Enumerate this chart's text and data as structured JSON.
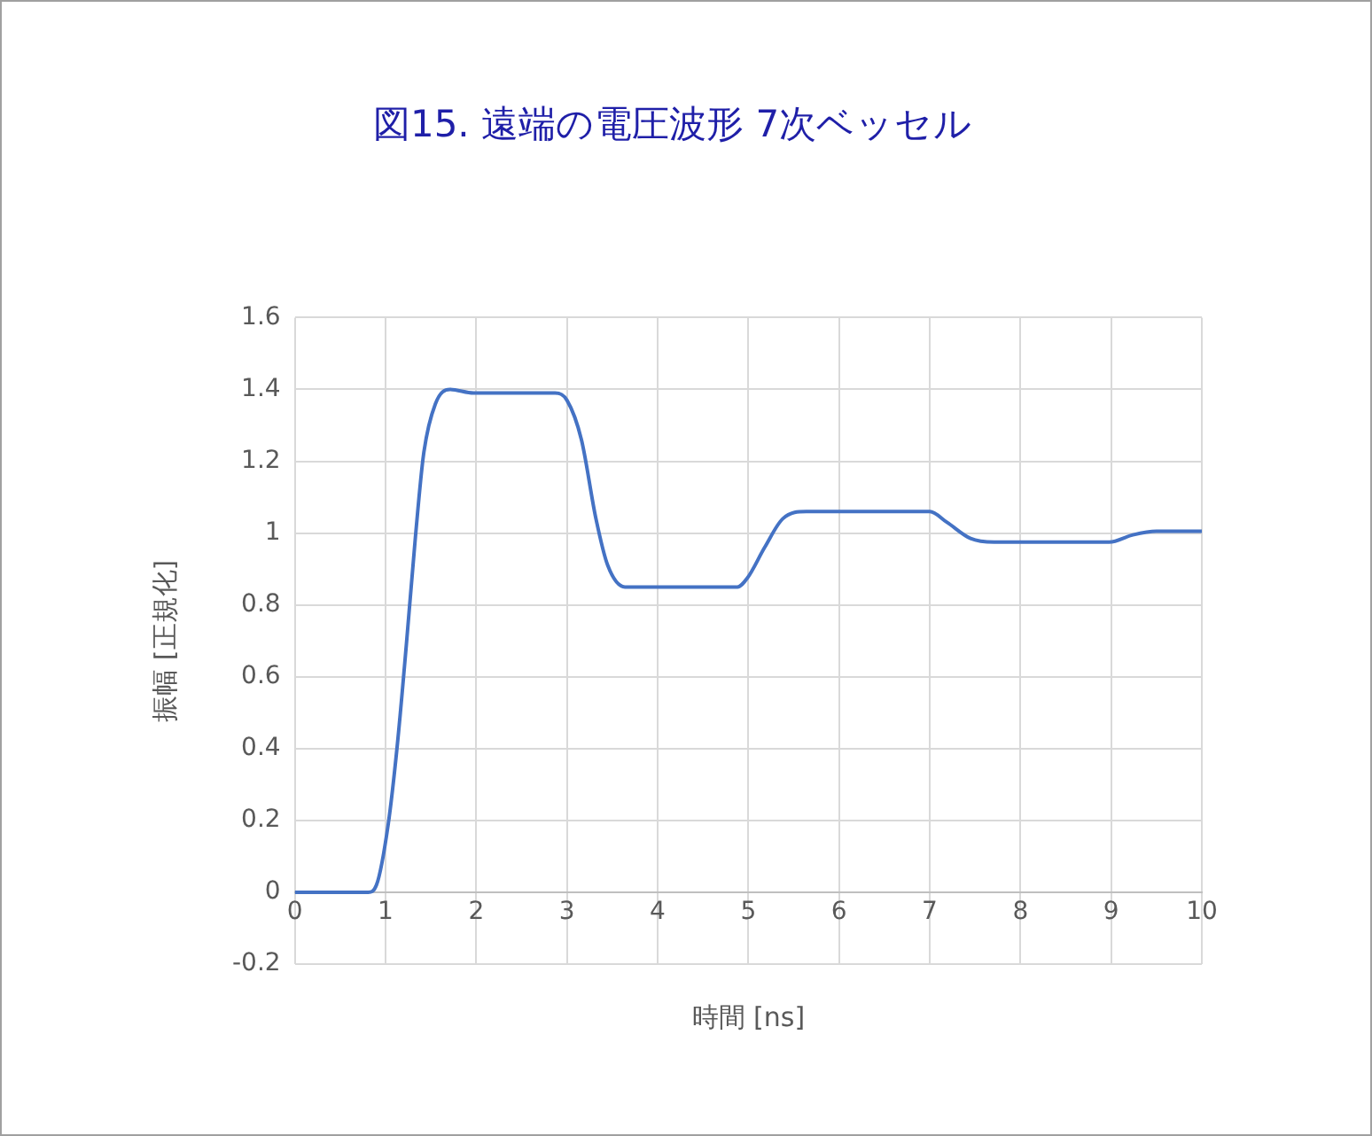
{
  "chart_data": {
    "type": "line",
    "title": "図15. 遠端の電圧波形 7次ベッセル",
    "xlabel": "時間 [ns]",
    "ylabel": "振幅 [正規化]",
    "x": [
      0,
      0.81,
      0.9,
      1.03,
      1.13,
      1.23,
      1.33,
      1.42,
      1.55,
      1.71,
      1.97,
      2.4,
      2.87,
      3.0,
      3.16,
      3.32,
      3.45,
      3.64,
      3.71,
      4.0,
      4.5,
      4.88,
      4.99,
      5.18,
      5.38,
      5.64,
      6.0,
      6.5,
      7.0,
      7.19,
      7.45,
      7.71,
      8.0,
      8.5,
      8.98,
      9.24,
      9.5,
      10
    ],
    "series": [
      {
        "color": "#4472c4",
        "values": [
          0,
          0,
          0.02,
          0.19,
          0.41,
          0.69,
          0.99,
          1.22,
          1.36,
          1.4,
          1.39,
          1.39,
          1.39,
          1.37,
          1.26,
          1.04,
          0.91,
          0.85,
          0.85,
          0.85,
          0.85,
          0.85,
          0.875,
          0.96,
          1.04,
          1.06,
          1.06,
          1.06,
          1.06,
          1.03,
          0.985,
          0.975,
          0.975,
          0.975,
          0.975,
          0.995,
          1.005,
          1.005
        ]
      }
    ],
    "xlim": [
      0,
      10
    ],
    "xticks": [
      0,
      1,
      2,
      3,
      4,
      5,
      6,
      7,
      8,
      9,
      10
    ],
    "ylim": [
      -0.2,
      1.6
    ],
    "yticks": [
      -0.2,
      0,
      0.2,
      0.4,
      0.6,
      0.8,
      1,
      1.2,
      1.4,
      1.6
    ],
    "grid": true,
    "legend": false,
    "marker": "none",
    "line_style": "solid"
  }
}
